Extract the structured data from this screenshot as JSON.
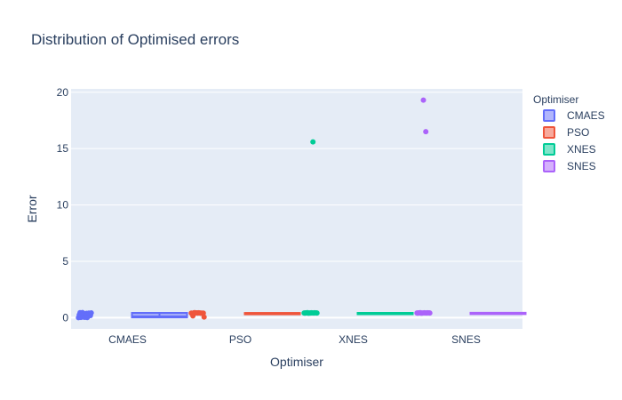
{
  "chart_data": {
    "type": "box",
    "title": "Distribution of Optimised errors",
    "xlabel": "Optimiser",
    "ylabel": "Error",
    "ylim": [
      -1,
      20.3
    ],
    "yticks": [
      0,
      5,
      10,
      15,
      20
    ],
    "grid": true,
    "legend": {
      "title": "Optimiser",
      "placement": "top-right"
    },
    "categories": [
      "CMAES",
      "PSO",
      "XNES",
      "SNES"
    ],
    "series": [
      {
        "name": "CMAES",
        "color": "#636efa",
        "box": {
          "min": 0.0,
          "q1": 0.02,
          "median": 0.1,
          "q3": 0.42,
          "max": 0.45
        },
        "points": [
          0.0,
          0.02,
          0.05,
          0.08,
          0.12,
          0.18,
          0.25,
          0.3,
          0.35,
          0.38,
          0.4,
          0.42,
          0.44,
          0.45,
          0.03,
          0.01
        ]
      },
      {
        "name": "PSO",
        "color": "#ef553b",
        "box": {
          "min": 0.38,
          "q1": 0.39,
          "median": 0.4,
          "q3": 0.41,
          "max": 0.45
        },
        "points": [
          0.4,
          0.42,
          0.41,
          0.43,
          0.39,
          0.4,
          0.38,
          0.44,
          0.42,
          0.41,
          0.4,
          0.05,
          0.15,
          0.43,
          0.4,
          0.41
        ]
      },
      {
        "name": "XNES",
        "color": "#00cc96",
        "box": {
          "min": 0.4,
          "q1": 0.4,
          "median": 0.41,
          "q3": 0.42,
          "max": 0.45
        },
        "points": [
          0.41,
          0.42,
          0.4,
          0.43,
          0.41,
          0.42,
          0.4,
          0.44,
          0.41,
          0.42,
          0.43,
          0.41,
          0.42,
          0.4,
          0.41,
          15.6
        ]
      },
      {
        "name": "SNES",
        "color": "#ab63fa",
        "box": {
          "min": 0.4,
          "q1": 0.41,
          "median": 0.42,
          "q3": 0.43,
          "max": 0.45
        },
        "points": [
          0.41,
          0.42,
          0.4,
          0.43,
          0.41,
          0.42,
          0.4,
          0.44,
          0.41,
          0.42,
          0.43,
          0.41,
          0.42,
          0.4,
          19.3,
          16.5
        ]
      }
    ]
  }
}
